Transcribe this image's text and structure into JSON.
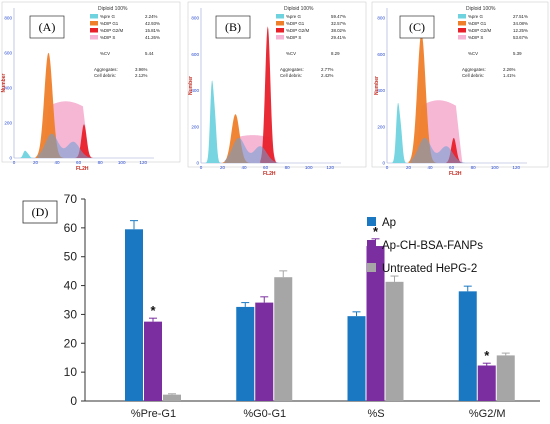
{
  "panels": [
    {
      "label": "(A)",
      "title": "Diploid 100%",
      "ylabel": "Number",
      "xlabel": "FL2H",
      "ticks": [
        "0",
        "20",
        "40",
        "60",
        "80",
        "100",
        "120"
      ],
      "yticks": [
        "0",
        "200",
        "400",
        "600",
        "800"
      ],
      "legend": [
        {
          "name": "%pre G",
          "value": "2.24%",
          "color": "#6fd3df"
        },
        {
          "name": "%DIP G1",
          "value": "42.93%",
          "color": "#ef7f2a"
        },
        {
          "name": "%DIP G2/M",
          "value": "15.81%",
          "color": "#e8202a"
        },
        {
          "name": "%DIP S",
          "value": "41.26%",
          "color": "#f6b3d3"
        }
      ],
      "cv": {
        "label": "%CV",
        "value": "5.44"
      },
      "aggregates": {
        "label": "Aggregates:",
        "value": "3.96%"
      },
      "debris": {
        "label": "Cell debris:",
        "value": "2.12%"
      }
    },
    {
      "label": "(B)",
      "title": "Diploid 100%",
      "ylabel": "Number",
      "xlabel": "FL2H",
      "ticks": [
        "0",
        "20",
        "40",
        "60",
        "80",
        "100",
        "120"
      ],
      "yticks": [
        "0",
        "200",
        "400",
        "600",
        "800"
      ],
      "legend": [
        {
          "name": "%pre G",
          "value": "59.47%",
          "color": "#6fd3df"
        },
        {
          "name": "%DIP G1",
          "value": "32.57%",
          "color": "#ef7f2a"
        },
        {
          "name": "%DIP G2/M",
          "value": "38.02%",
          "color": "#e8202a"
        },
        {
          "name": "%DIP S",
          "value": "29.41%",
          "color": "#f6b3d3"
        }
      ],
      "cv": {
        "label": "%CV",
        "value": "8.29"
      },
      "aggregates": {
        "label": "Aggregates:",
        "value": "2.77%"
      },
      "debris": {
        "label": "Cell debris:",
        "value": "2.42%"
      }
    },
    {
      "label": "(C)",
      "title": "Diploid 100%",
      "ylabel": "Number",
      "xlabel": "FL2H",
      "ticks": [
        "0",
        "20",
        "40",
        "60",
        "80",
        "100",
        "120"
      ],
      "yticks": [
        "0",
        "200",
        "400",
        "600",
        "800"
      ],
      "legend": [
        {
          "name": "%pre G",
          "value": "27.51%",
          "color": "#6fd3df"
        },
        {
          "name": "%DIP G1",
          "value": "34.08%",
          "color": "#ef7f2a"
        },
        {
          "name": "%DIP G2/M",
          "value": "12.25%",
          "color": "#e8202a"
        },
        {
          "name": "%DIP S",
          "value": "53.67%",
          "color": "#f6b3d3"
        }
      ],
      "cv": {
        "label": "%CV",
        "value": "5.39"
      },
      "aggregates": {
        "label": "Aggregates:",
        "value": "2.26%"
      },
      "debris": {
        "label": "Cell debris:",
        "value": "1.41%"
      }
    }
  ],
  "chart_data": {
    "type": "bar",
    "panel_label": "(D)",
    "title": "",
    "xlabel": "",
    "ylabel": "",
    "categories": [
      "%Pre-G1",
      "%G0-G1",
      "%S",
      "%G2/M"
    ],
    "ylim": [
      0,
      70
    ],
    "yticks": [
      0,
      10,
      20,
      30,
      40,
      50,
      60,
      70
    ],
    "grid": false,
    "legend_position": "top-right",
    "series": [
      {
        "name": "Ap",
        "color": "#1a78c2",
        "values": [
          59.5,
          32.6,
          29.4,
          38.0
        ],
        "errors": [
          3.0,
          1.5,
          1.5,
          1.8
        ],
        "sig": [
          false,
          false,
          false,
          false
        ]
      },
      {
        "name": "Ap-CH-BSA-FANPs",
        "color": "#7a2ea0",
        "values": [
          27.5,
          34.1,
          53.7,
          12.3
        ],
        "errors": [
          1.2,
          2.0,
          2.5,
          0.8
        ],
        "sig": [
          true,
          false,
          true,
          true
        ]
      },
      {
        "name": "Untreated HePG-2",
        "color": "#a6a6a6",
        "values": [
          2.2,
          42.9,
          41.3,
          15.8
        ],
        "errors": [
          0.3,
          2.2,
          2.0,
          0.8
        ],
        "sig": [
          false,
          false,
          false,
          false
        ]
      }
    ],
    "annotation": "*"
  }
}
